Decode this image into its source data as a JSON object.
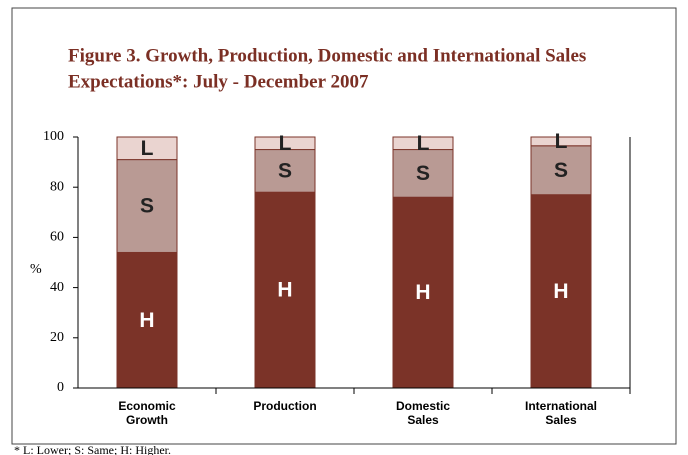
{
  "chart_data": {
    "type": "stacked_bar",
    "title": [
      "Figure 3. Growth, Production, Domestic and International Sales",
      "Expectations*: July - December 2007"
    ],
    "ylabel": "%",
    "footnote": "* L: Lower; S: Same; H: Higher.",
    "categories": [
      "Economic Growth",
      "Production",
      "Domestic Sales",
      "International Sales"
    ],
    "series": [
      {
        "name": "H",
        "color": "#7b3328",
        "values": [
          54,
          78,
          76,
          77
        ]
      },
      {
        "name": "S",
        "color": "#b99a94",
        "values": [
          37,
          17,
          19,
          19.5
        ]
      },
      {
        "name": "L",
        "color": "#ead4d0",
        "values": [
          9,
          5,
          5,
          3.5
        ]
      }
    ],
    "ylim": [
      0,
      100
    ],
    "yticks": [
      0,
      20,
      40,
      60,
      80,
      100
    ]
  }
}
